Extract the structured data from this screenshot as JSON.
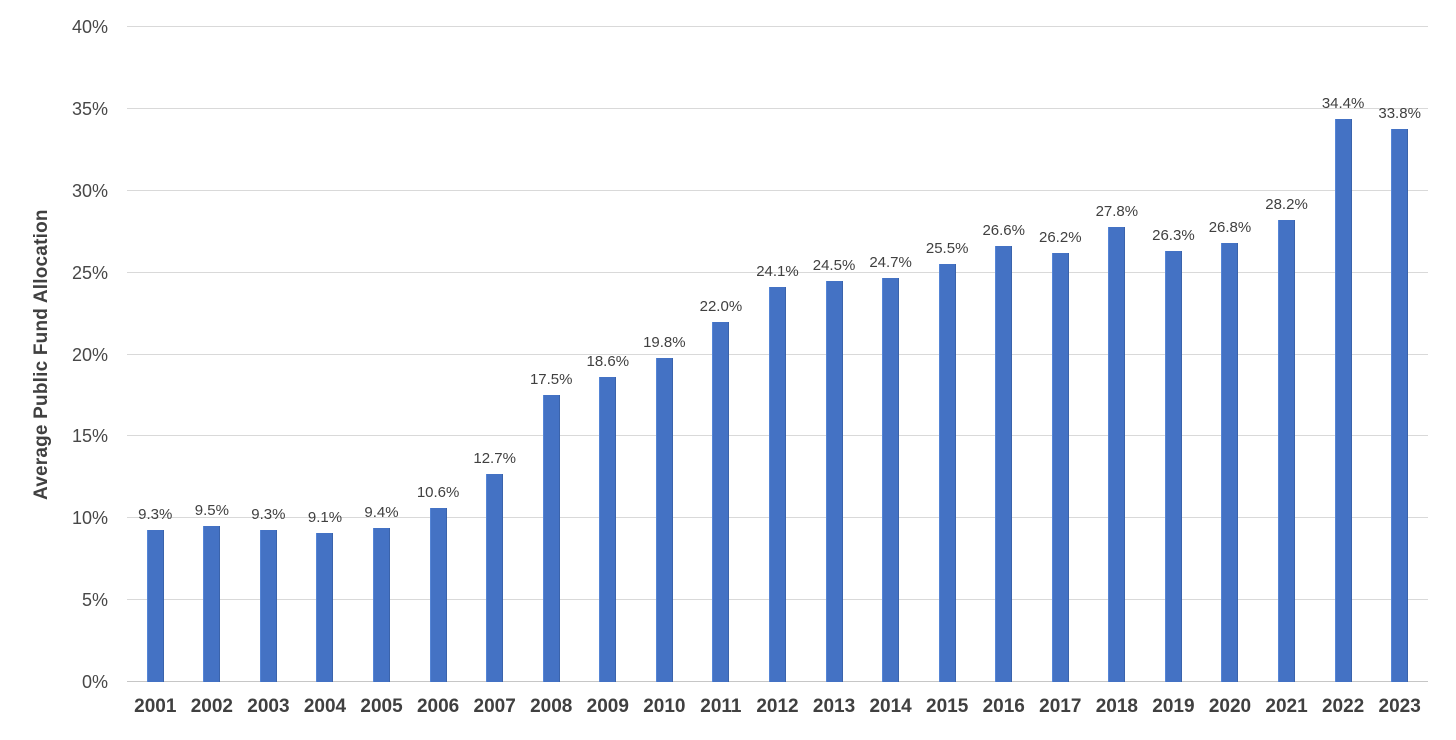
{
  "chart_data": {
    "type": "bar",
    "title": "",
    "xlabel": "",
    "ylabel": "Average Public Fund Allocation",
    "categories": [
      "2001",
      "2002",
      "2003",
      "2004",
      "2005",
      "2006",
      "2007",
      "2008",
      "2009",
      "2010",
      "2011",
      "2012",
      "2013",
      "2014",
      "2015",
      "2016",
      "2017",
      "2018",
      "2019",
      "2020",
      "2021",
      "2022",
      "2023"
    ],
    "values": [
      9.3,
      9.5,
      9.3,
      9.1,
      9.4,
      10.6,
      12.7,
      17.5,
      18.6,
      19.8,
      22.0,
      24.1,
      24.5,
      24.7,
      25.5,
      26.6,
      26.2,
      27.8,
      26.3,
      26.8,
      28.2,
      34.4,
      33.8
    ],
    "data_labels": [
      "9.3%",
      "9.5%",
      "9.3%",
      "9.1%",
      "9.4%",
      "10.6%",
      "12.7%",
      "17.5%",
      "18.6%",
      "19.8%",
      "22.0%",
      "24.1%",
      "24.5%",
      "24.7%",
      "25.5%",
      "26.6%",
      "26.2%",
      "27.8%",
      "26.3%",
      "26.8%",
      "28.2%",
      "34.4%",
      "33.8%"
    ],
    "ylim": [
      0,
      40
    ],
    "yticks": [
      0,
      5,
      10,
      15,
      20,
      25,
      30,
      35,
      40
    ],
    "ytick_labels": [
      "0%",
      "5%",
      "10%",
      "15%",
      "20%",
      "25%",
      "30%",
      "35%",
      "40%"
    ],
    "grid": true,
    "legend": false,
    "colors": {
      "bar": "#4472c4",
      "gridline": "#d9d9d9",
      "baseline": "#c6c6c6",
      "text": "#404040",
      "tick_text": "#474747",
      "background": "#ffffff"
    }
  }
}
